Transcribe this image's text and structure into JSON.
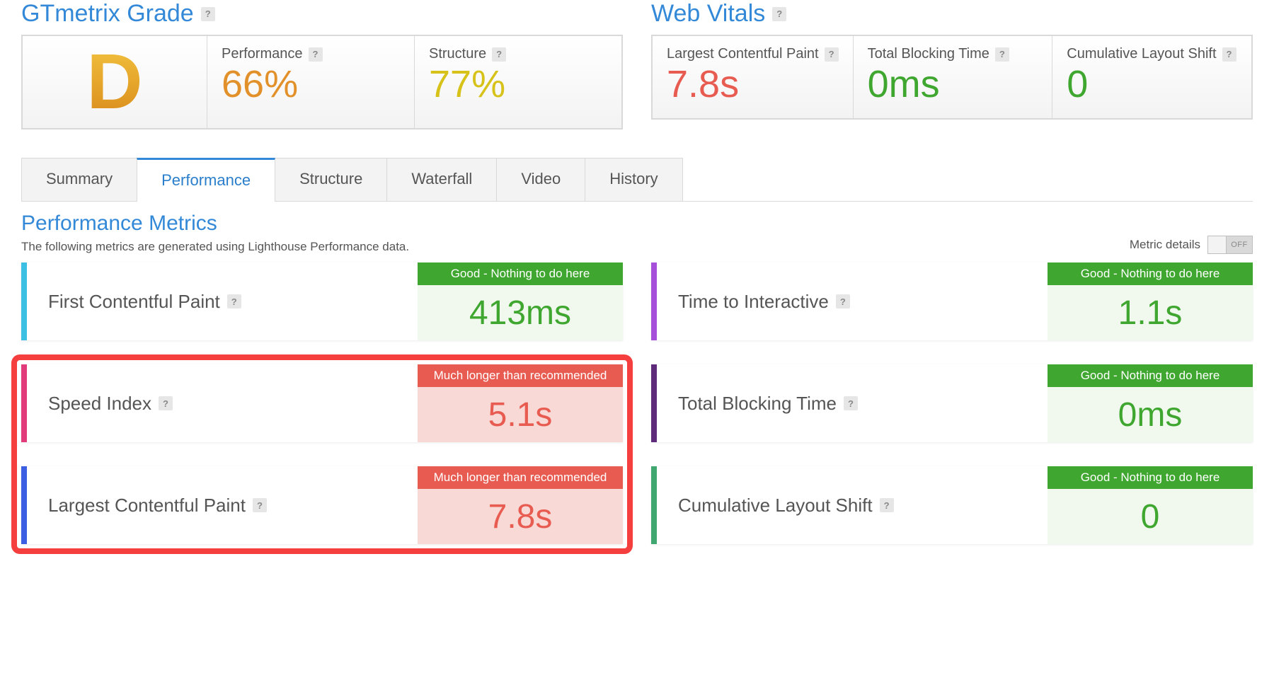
{
  "colors": {
    "blue": "#3389d7",
    "orange": "#e2912a",
    "yellow": "#d7c21a",
    "red": "#e85b50",
    "red_bg": "#f8d9d6",
    "green": "#3fa72f",
    "green_header": "#3fa72f",
    "green_bg": "#f1f9ef",
    "highlight": "#f53f3f"
  },
  "grade": {
    "section_title": "GTmetrix Grade",
    "letter": "D",
    "performance": {
      "label": "Performance",
      "value": "66%",
      "color": "#e2912a"
    },
    "structure": {
      "label": "Structure",
      "value": "77%",
      "color": "#d7c21a"
    }
  },
  "vitals": {
    "section_title": "Web Vitals",
    "lcp": {
      "label": "Largest Contentful Paint",
      "value": "7.8s",
      "color": "#e85b50"
    },
    "tbt": {
      "label": "Total Blocking Time",
      "value": "0ms",
      "color": "#3fa72f"
    },
    "cls": {
      "label": "Cumulative Layout Shift",
      "value": "0",
      "color": "#3fa72f"
    }
  },
  "tabs": [
    "Summary",
    "Performance",
    "Structure",
    "Waterfall",
    "Video",
    "History"
  ],
  "active_tab_index": 1,
  "perf_section": {
    "title": "Performance Metrics",
    "desc": "The following metrics are generated using Lighthouse Performance data.",
    "toggle_label": "Metric details",
    "toggle_state": "OFF"
  },
  "status_text": {
    "good": "Good - Nothing to do here",
    "bad": "Much longer than recommended"
  },
  "metrics": [
    {
      "name": "First Contentful Paint",
      "value": "413ms",
      "status": "good",
      "bar_color": "#3bbfe2"
    },
    {
      "name": "Time to Interactive",
      "value": "1.1s",
      "status": "good",
      "bar_color": "#a64fdb"
    },
    {
      "name": "Speed Index",
      "value": "5.1s",
      "status": "bad",
      "bar_color": "#e23b7a"
    },
    {
      "name": "Total Blocking Time",
      "value": "0ms",
      "status": "good",
      "bar_color": "#5e2a7a"
    },
    {
      "name": "Largest Contentful Paint",
      "value": "7.8s",
      "status": "bad",
      "bar_color": "#3b5ee2"
    },
    {
      "name": "Cumulative Layout Shift",
      "value": "0",
      "status": "good",
      "bar_color": "#3fa76f"
    }
  ],
  "highlight_metric_indices": [
    2,
    4
  ]
}
